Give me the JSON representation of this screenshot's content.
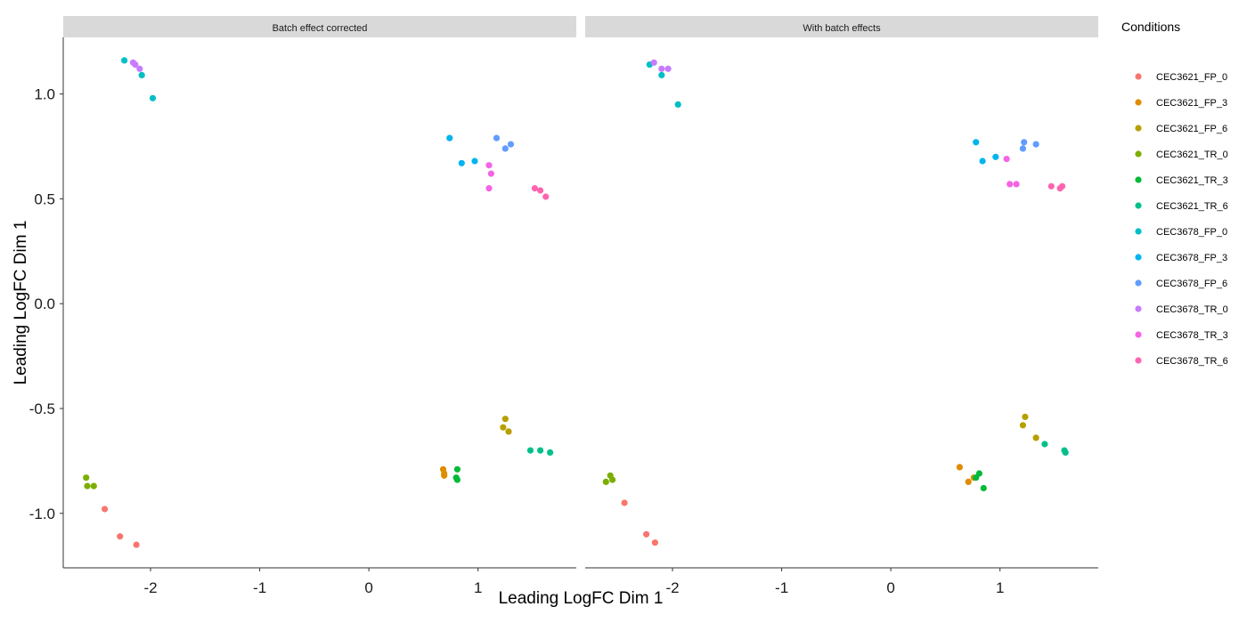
{
  "chart_data": {
    "type": "scatter",
    "xlabel": "Leading LogFC Dim 1",
    "ylabel": "Leading LogFC Dim 1",
    "xlim": [
      -2.8,
      1.9
    ],
    "ylim": [
      -1.26,
      1.27
    ],
    "xticks": [
      -2,
      -1,
      0,
      1
    ],
    "xtick_labels": [
      "-2",
      "-1",
      "0",
      "1"
    ],
    "yticks": [
      -1.0,
      -0.5,
      0.0,
      0.5,
      1.0
    ],
    "ytick_labels": [
      "-1.0",
      "-0.5",
      "0.0",
      "0.5",
      "1.0"
    ],
    "grid": false,
    "legend": {
      "title": "Conditions",
      "placement": "right",
      "entries": [
        {
          "name": "CEC3621_FP_0",
          "color": "#F8766D"
        },
        {
          "name": "CEC3621_FP_3",
          "color": "#DE8C00"
        },
        {
          "name": "CEC3621_FP_6",
          "color": "#B79F00"
        },
        {
          "name": "CEC3621_TR_0",
          "color": "#7CAE00"
        },
        {
          "name": "CEC3621_TR_3",
          "color": "#00BA38"
        },
        {
          "name": "CEC3621_TR_6",
          "color": "#00C08B"
        },
        {
          "name": "CEC3678_FP_0",
          "color": "#00BFC4"
        },
        {
          "name": "CEC3678_FP_3",
          "color": "#00B4F0"
        },
        {
          "name": "CEC3678_FP_6",
          "color": "#619CFF"
        },
        {
          "name": "CEC3678_TR_0",
          "color": "#C77CFF"
        },
        {
          "name": "CEC3678_TR_3",
          "color": "#F564E3"
        },
        {
          "name": "CEC3678_TR_6",
          "color": "#FF64B0"
        }
      ]
    },
    "panels": [
      {
        "title": "Batch effect corrected",
        "points": [
          {
            "group": "CEC3621_FP_0",
            "x": -2.42,
            "y": -0.98
          },
          {
            "group": "CEC3621_FP_0",
            "x": -2.28,
            "y": -1.11
          },
          {
            "group": "CEC3621_FP_0",
            "x": -2.13,
            "y": -1.15
          },
          {
            "group": "CEC3621_FP_3",
            "x": 0.68,
            "y": -0.79
          },
          {
            "group": "CEC3621_FP_3",
            "x": 0.69,
            "y": -0.81
          },
          {
            "group": "CEC3621_FP_3",
            "x": 0.69,
            "y": -0.82
          },
          {
            "group": "CEC3621_FP_6",
            "x": 1.25,
            "y": -0.55
          },
          {
            "group": "CEC3621_FP_6",
            "x": 1.23,
            "y": -0.59
          },
          {
            "group": "CEC3621_FP_6",
            "x": 1.28,
            "y": -0.61
          },
          {
            "group": "CEC3621_TR_0",
            "x": -2.59,
            "y": -0.83
          },
          {
            "group": "CEC3621_TR_0",
            "x": -2.58,
            "y": -0.87
          },
          {
            "group": "CEC3621_TR_0",
            "x": -2.52,
            "y": -0.87
          },
          {
            "group": "CEC3621_TR_3",
            "x": 0.81,
            "y": -0.79
          },
          {
            "group": "CEC3621_TR_3",
            "x": 0.8,
            "y": -0.83
          },
          {
            "group": "CEC3621_TR_3",
            "x": 0.81,
            "y": -0.84
          },
          {
            "group": "CEC3621_TR_6",
            "x": 1.48,
            "y": -0.7
          },
          {
            "group": "CEC3621_TR_6",
            "x": 1.57,
            "y": -0.7
          },
          {
            "group": "CEC3621_TR_6",
            "x": 1.66,
            "y": -0.71
          },
          {
            "group": "CEC3678_FP_0",
            "x": -2.24,
            "y": 1.16
          },
          {
            "group": "CEC3678_FP_0",
            "x": -2.08,
            "y": 1.09
          },
          {
            "group": "CEC3678_FP_0",
            "x": -1.98,
            "y": 0.98
          },
          {
            "group": "CEC3678_FP_3",
            "x": 0.74,
            "y": 0.79
          },
          {
            "group": "CEC3678_FP_3",
            "x": 0.85,
            "y": 0.67
          },
          {
            "group": "CEC3678_FP_3",
            "x": 0.97,
            "y": 0.68
          },
          {
            "group": "CEC3678_FP_6",
            "x": 1.17,
            "y": 0.79
          },
          {
            "group": "CEC3678_FP_6",
            "x": 1.3,
            "y": 0.76
          },
          {
            "group": "CEC3678_FP_6",
            "x": 1.25,
            "y": 0.74
          },
          {
            "group": "CEC3678_TR_0",
            "x": -2.14,
            "y": 1.14
          },
          {
            "group": "CEC3678_TR_0",
            "x": -2.1,
            "y": 1.12
          },
          {
            "group": "CEC3678_TR_0",
            "x": -2.16,
            "y": 1.15
          },
          {
            "group": "CEC3678_TR_3",
            "x": 1.1,
            "y": 0.66
          },
          {
            "group": "CEC3678_TR_3",
            "x": 1.12,
            "y": 0.62
          },
          {
            "group": "CEC3678_TR_3",
            "x": 1.1,
            "y": 0.55
          },
          {
            "group": "CEC3678_TR_6",
            "x": 1.52,
            "y": 0.55
          },
          {
            "group": "CEC3678_TR_6",
            "x": 1.57,
            "y": 0.54
          },
          {
            "group": "CEC3678_TR_6",
            "x": 1.62,
            "y": 0.51
          }
        ]
      },
      {
        "title": "With batch effects",
        "points": [
          {
            "group": "CEC3621_FP_0",
            "x": -2.44,
            "y": -0.95
          },
          {
            "group": "CEC3621_FP_0",
            "x": -2.24,
            "y": -1.1
          },
          {
            "group": "CEC3621_FP_0",
            "x": -2.16,
            "y": -1.14
          },
          {
            "group": "CEC3621_FP_3",
            "x": 0.63,
            "y": -0.78
          },
          {
            "group": "CEC3621_FP_3",
            "x": 0.71,
            "y": -0.85
          },
          {
            "group": "CEC3621_FP_3",
            "x": 0.76,
            "y": -0.83
          },
          {
            "group": "CEC3621_FP_6",
            "x": 1.23,
            "y": -0.54
          },
          {
            "group": "CEC3621_FP_6",
            "x": 1.21,
            "y": -0.58
          },
          {
            "group": "CEC3621_FP_6",
            "x": 1.33,
            "y": -0.64
          },
          {
            "group": "CEC3621_TR_0",
            "x": -2.57,
            "y": -0.82
          },
          {
            "group": "CEC3621_TR_0",
            "x": -2.55,
            "y": -0.84
          },
          {
            "group": "CEC3621_TR_0",
            "x": -2.61,
            "y": -0.85
          },
          {
            "group": "CEC3621_TR_3",
            "x": 0.81,
            "y": -0.81
          },
          {
            "group": "CEC3621_TR_3",
            "x": 0.78,
            "y": -0.83
          },
          {
            "group": "CEC3621_TR_3",
            "x": 0.85,
            "y": -0.88
          },
          {
            "group": "CEC3621_TR_6",
            "x": 1.41,
            "y": -0.67
          },
          {
            "group": "CEC3621_TR_6",
            "x": 1.59,
            "y": -0.7
          },
          {
            "group": "CEC3621_TR_6",
            "x": 1.6,
            "y": -0.71
          },
          {
            "group": "CEC3678_FP_0",
            "x": -2.21,
            "y": 1.14
          },
          {
            "group": "CEC3678_FP_0",
            "x": -2.1,
            "y": 1.09
          },
          {
            "group": "CEC3678_FP_0",
            "x": -1.95,
            "y": 0.95
          },
          {
            "group": "CEC3678_FP_3",
            "x": 0.78,
            "y": 0.77
          },
          {
            "group": "CEC3678_FP_3",
            "x": 0.84,
            "y": 0.68
          },
          {
            "group": "CEC3678_FP_3",
            "x": 0.96,
            "y": 0.7
          },
          {
            "group": "CEC3678_FP_6",
            "x": 1.22,
            "y": 0.77
          },
          {
            "group": "CEC3678_FP_6",
            "x": 1.33,
            "y": 0.76
          },
          {
            "group": "CEC3678_FP_6",
            "x": 1.21,
            "y": 0.74
          },
          {
            "group": "CEC3678_TR_0",
            "x": -2.17,
            "y": 1.15
          },
          {
            "group": "CEC3678_TR_0",
            "x": -2.1,
            "y": 1.12
          },
          {
            "group": "CEC3678_TR_0",
            "x": -2.04,
            "y": 1.12
          },
          {
            "group": "CEC3678_TR_3",
            "x": 1.06,
            "y": 0.69
          },
          {
            "group": "CEC3678_TR_3",
            "x": 1.09,
            "y": 0.57
          },
          {
            "group": "CEC3678_TR_3",
            "x": 1.15,
            "y": 0.57
          },
          {
            "group": "CEC3678_TR_6",
            "x": 1.47,
            "y": 0.56
          },
          {
            "group": "CEC3678_TR_6",
            "x": 1.55,
            "y": 0.55
          },
          {
            "group": "CEC3678_TR_6",
            "x": 1.57,
            "y": 0.56
          }
        ]
      }
    ]
  }
}
